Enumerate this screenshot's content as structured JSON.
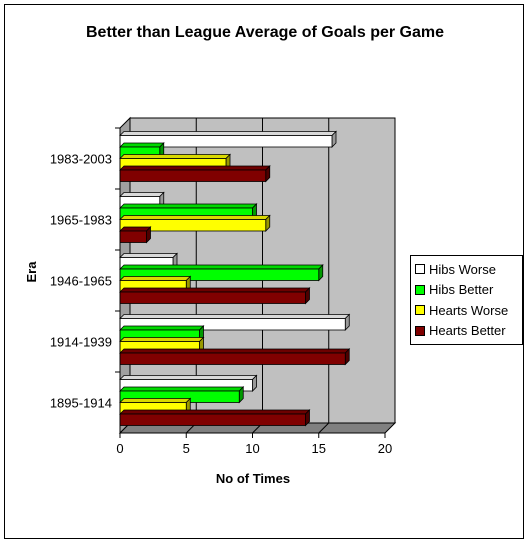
{
  "chart_data": {
    "type": "bar",
    "orientation": "horizontal",
    "style": "3d",
    "title": "Better than League Average of Goals per Game",
    "xlabel": "No of Times",
    "ylabel": "Era",
    "xlim": [
      0,
      20
    ],
    "xticks": [
      "0",
      "5",
      "10",
      "15",
      "20"
    ],
    "grid": true,
    "legend_position": "right",
    "categories": [
      "1983-2003",
      "1965-1983",
      "1946-1965",
      "1914-1939",
      "1895-1914"
    ],
    "series": [
      {
        "name": "Hibs Worse",
        "color": "#ffffff",
        "values": [
          16,
          3,
          4,
          17,
          10
        ]
      },
      {
        "name": "Hibs Better",
        "color": "#00ff00",
        "values": [
          3,
          10,
          15,
          6,
          9
        ]
      },
      {
        "name": "Hearts Worse",
        "color": "#ffff00",
        "values": [
          8,
          11,
          5,
          6,
          5
        ]
      },
      {
        "name": "Hearts Better",
        "color": "#800000",
        "values": [
          11,
          2,
          14,
          17,
          14
        ]
      }
    ],
    "plot_wall_color": "#c0c0c0"
  }
}
